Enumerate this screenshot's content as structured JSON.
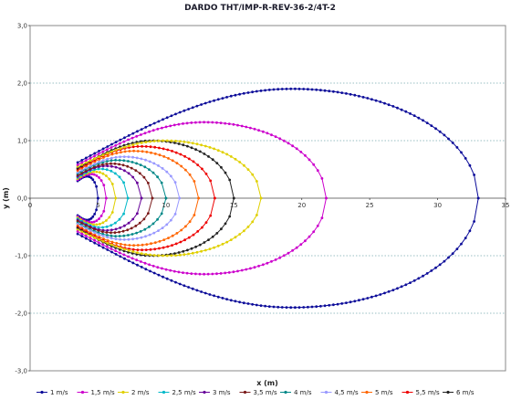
{
  "chart_data": {
    "type": "scatter",
    "title": "DARDO THT/IMP-R-REV-36-2/4T-2",
    "xlabel": "x (m)",
    "ylabel": "y (m)",
    "xlim": [
      0,
      35
    ],
    "ylim": [
      -3,
      3
    ],
    "xticks": [
      "0",
      "5",
      "10",
      "15",
      "20",
      "25",
      "30",
      "35"
    ],
    "yticks": [
      "3,0",
      "2,0",
      "1,0",
      "0,0",
      "-1,0",
      "-2,0",
      "-3,0"
    ],
    "grid": "horizontal dotted",
    "legend_position": "bottom",
    "series": [
      {
        "name": "1 m/s",
        "color": "#0b0b99",
        "x0": 3.5,
        "xmax": 5.0,
        "peak_x": 4.2,
        "ymax": 0.38,
        "y0": 0.3
      },
      {
        "name": "1,5 m/s",
        "color": "#cc00cc",
        "x0": 3.5,
        "xmax": 5.6,
        "peak_x": 4.5,
        "ymax": 0.42,
        "y0": 0.32
      },
      {
        "name": "2 m/s",
        "color": "#e0d000",
        "x0": 3.5,
        "xmax": 6.3,
        "peak_x": 4.8,
        "ymax": 0.46,
        "y0": 0.34
      },
      {
        "name": "2,5 m/s",
        "color": "#00b8c8",
        "x0": 3.5,
        "xmax": 7.2,
        "peak_x": 5.2,
        "ymax": 0.51,
        "y0": 0.36
      },
      {
        "name": "3 m/s",
        "color": "#660099",
        "x0": 3.5,
        "xmax": 8.2,
        "peak_x": 5.6,
        "ymax": 0.56,
        "y0": 0.38
      },
      {
        "name": "3,5 m/s",
        "color": "#7a1a1a",
        "x0": 3.5,
        "xmax": 9.0,
        "peak_x": 6.0,
        "ymax": 0.6,
        "y0": 0.4
      },
      {
        "name": "4 m/s",
        "color": "#008888",
        "x0": 3.5,
        "xmax": 10.0,
        "peak_x": 6.4,
        "ymax": 0.66,
        "y0": 0.43
      },
      {
        "name": "4,5 m/s",
        "color": "#9999ff",
        "x0": 3.5,
        "xmax": 11.0,
        "peak_x": 6.9,
        "ymax": 0.72,
        "y0": 0.45
      },
      {
        "name": "5 m/s",
        "color": "#ff6600",
        "x0": 3.5,
        "xmax": 12.4,
        "peak_x": 7.6,
        "ymax": 0.82,
        "y0": 0.48
      },
      {
        "name": "5,5 m/s",
        "color": "#ee0000",
        "x0": 3.5,
        "xmax": 13.6,
        "peak_x": 8.2,
        "ymax": 0.9,
        "y0": 0.5
      },
      {
        "name": "6 m/s",
        "color": "#222222",
        "x0": 3.5,
        "xmax": 15.0,
        "peak_x": 9.0,
        "ymax": 1.0,
        "y0": 0.52
      },
      {
        "name": "",
        "color": "#e0d000",
        "x0": 3.5,
        "xmax": 17.0,
        "peak_x": 9.9,
        "ymax": 1.0,
        "y0": 0.55
      },
      {
        "name": "",
        "color": "#cc00cc",
        "x0": 3.5,
        "xmax": 21.8,
        "peak_x": 12.8,
        "ymax": 1.32,
        "y0": 0.58
      },
      {
        "name": "",
        "color": "#0b0b99",
        "x0": 3.5,
        "xmax": 33.0,
        "peak_x": 19.3,
        "ymax": 1.9,
        "y0": 0.62
      }
    ]
  }
}
